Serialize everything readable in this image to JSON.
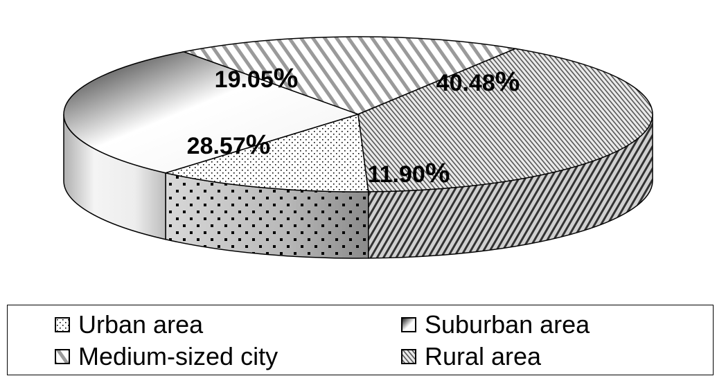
{
  "chart_data": {
    "type": "pie",
    "title": "",
    "categories": [
      "Urban area",
      "Suburban area",
      "Medium-sized city",
      "Rural area"
    ],
    "values": [
      11.9,
      28.57,
      19.05,
      40.48
    ],
    "labels": [
      "11.90",
      "28.57",
      "19.05",
      "40.48"
    ],
    "label_suffix": "%",
    "legend_position": "bottom",
    "patterns": [
      "dots",
      "gradient",
      "wide-diagonal-hatch",
      "dense-diagonal-hatch"
    ]
  }
}
